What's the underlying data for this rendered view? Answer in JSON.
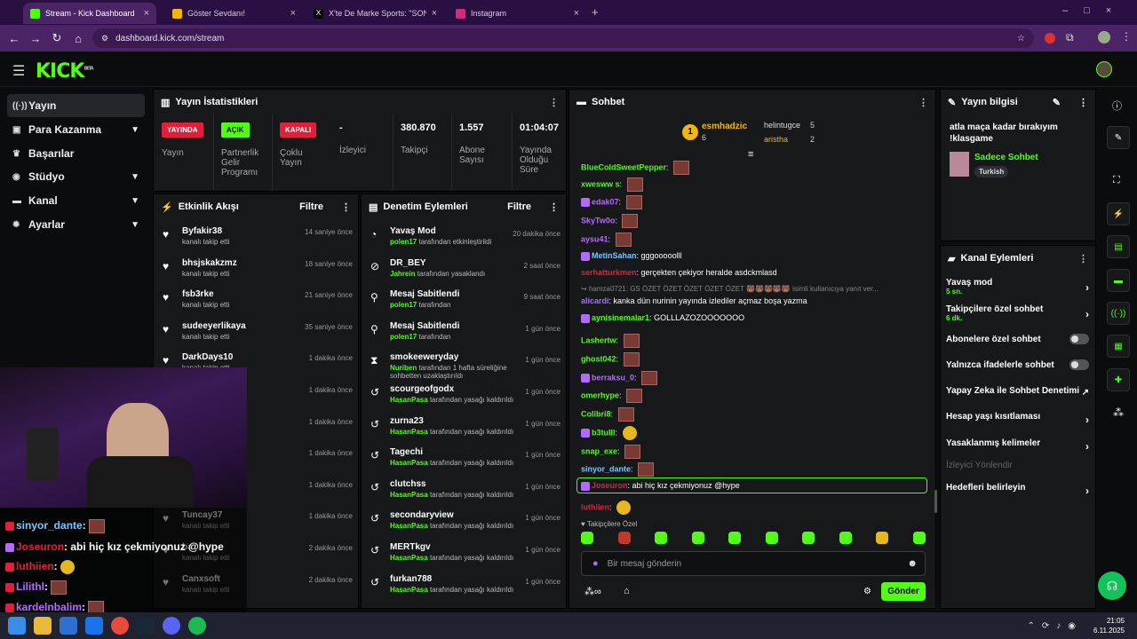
{
  "browser": {
    "tabs": [
      {
        "title": "Stream - Kick Dashboard",
        "active": true
      },
      {
        "title": "Göster Sevdanı!",
        "active": false
      },
      {
        "title": "X'te De Marke Sports: \"SON DA",
        "active": false
      },
      {
        "title": "Instagram",
        "active": false
      }
    ],
    "url": "dashboard.kick.com/stream"
  },
  "brand": {
    "logo": "KICK",
    "logo_sup": "BETA",
    "accent": "#53fc18"
  },
  "nav": [
    {
      "label": "Yayın",
      "icon": "stream-icon",
      "selected": true,
      "chevron": false
    },
    {
      "label": "Para Kazanma",
      "icon": "money-icon",
      "selected": false,
      "chevron": true
    },
    {
      "label": "Başarılar",
      "icon": "trophy-icon",
      "selected": false,
      "chevron": false
    },
    {
      "label": "Stüdyo",
      "icon": "studio-icon",
      "selected": false,
      "chevron": true
    },
    {
      "label": "Kanal",
      "icon": "channel-icon",
      "selected": false,
      "chevron": true
    },
    {
      "label": "Ayarlar",
      "icon": "gear-icon",
      "selected": false,
      "chevron": true
    }
  ],
  "stats": {
    "title": "Yayın İstatistikleri",
    "items": [
      {
        "badge": "YAYINDA",
        "badge_color": "#e0203a",
        "label": "Yayın"
      },
      {
        "badge": "AÇIK",
        "badge_color": "#53fc18",
        "label": "Partnerlik Gelir Programı"
      },
      {
        "badge": "KAPALI",
        "badge_color": "#e0203a",
        "label": "Çoklu Yayın"
      },
      {
        "value": "-",
        "label": "İzleyici"
      },
      {
        "value": "380.870",
        "label": "Takipçi"
      },
      {
        "value": "1.557",
        "label": "Abone Sayısı"
      },
      {
        "value": "01:04:07",
        "label": "Yayında Olduğu Süre"
      }
    ]
  },
  "activity": {
    "title": "Etkinlik Akışı",
    "filter": "Filtre",
    "rows": [
      {
        "name": "Byfakir38",
        "sub": "kanalı takip etti",
        "time": "14 saniye önce"
      },
      {
        "name": "bhsjskakzmz",
        "sub": "kanalı takip etti",
        "time": "18 saniye önce"
      },
      {
        "name": "fsb3rke",
        "sub": "kanalı takip etti",
        "time": "21 saniye önce"
      },
      {
        "name": "sudeeyerlikaya",
        "sub": "kanalı takip etti",
        "time": "35 saniye önce"
      },
      {
        "name": "DarkDays10",
        "sub": "kanalı takip etti",
        "time": "1 dakika önce"
      },
      {
        "name": "",
        "sub": "",
        "time": "1 dakika önce"
      },
      {
        "name": "",
        "sub": "",
        "time": "1 dakika önce"
      },
      {
        "name": "",
        "sub": "",
        "time": "1 dakika önce"
      },
      {
        "name": "",
        "sub": "",
        "time": "1 dakika önce"
      },
      {
        "name": "Tuncay37",
        "sub": "kanalı takip etti",
        "time": "1 dakika önce"
      },
      {
        "name": "ba",
        "sub": "kanalı takip etti",
        "time": "2 dakika önce"
      },
      {
        "name": "Canxsoft",
        "sub": "kanalı takip etti",
        "time": "2 dakika önce"
      }
    ]
  },
  "moderation": {
    "title": "Denetim Eylemleri",
    "filter": "Filtre",
    "rows": [
      {
        "icon": "slow-icon",
        "name": "Yavaş Mod",
        "actor": "polen17",
        "sub": "tarafından etkinleştirildi",
        "time": "20 dakika önce"
      },
      {
        "icon": "ban-icon",
        "name": "DR_BEY",
        "actor": "Jahrein",
        "sub": "tarafından yasaklandı",
        "time": "2 saat önce"
      },
      {
        "icon": "pin-icon",
        "name": "Mesaj Sabitlendi",
        "actor": "polen17",
        "sub": "tarafından",
        "time": "9 saat önce"
      },
      {
        "icon": "pin-icon",
        "name": "Mesaj Sabitlendi",
        "actor": "polen17",
        "sub": "tarafından",
        "time": "1 gün önce"
      },
      {
        "icon": "timeout-icon",
        "name": "smokeeweryday",
        "actor": "Nuriben",
        "sub": "tarafından 1 hafta süreliğine sohbetten uzaklaştırıldı",
        "time": "1 gün önce"
      },
      {
        "icon": "unban-icon",
        "name": "scourgeofgodx",
        "actor": "HasanPasa",
        "sub": "tarafından yasağı kaldırıldı",
        "time": "1 gün önce"
      },
      {
        "icon": "unban-icon",
        "name": "zurna23",
        "actor": "HasanPasa",
        "sub": "tarafından yasağı kaldırıldı",
        "time": "1 gün önce"
      },
      {
        "icon": "unban-icon",
        "name": "Tagechi",
        "actor": "HasanPasa",
        "sub": "tarafından yasağı kaldırıldı",
        "time": "1 gün önce"
      },
      {
        "icon": "unban-icon",
        "name": "clutchss",
        "actor": "HasanPasa",
        "sub": "tarafından yasağı kaldırıldı",
        "time": "1 gün önce"
      },
      {
        "icon": "unban-icon",
        "name": "secondaryview",
        "actor": "HasanPasa",
        "sub": "tarafından yasağı kaldırıldı",
        "time": "1 gün önce"
      },
      {
        "icon": "unban-icon",
        "name": "MERTkgv",
        "actor": "HasanPasa",
        "sub": "tarafından yasağı kaldırıldı",
        "time": "1 gün önce"
      },
      {
        "icon": "unban-icon",
        "name": "furkan788",
        "actor": "HasanPasa",
        "sub": "tarafından yasağı kaldırıldı",
        "time": "1 gün önce"
      }
    ]
  },
  "chat": {
    "title": "Sohbet",
    "leaders": [
      {
        "rank": "1",
        "name": "esmhadzic",
        "count": "6"
      },
      {
        "name": "helintugce",
        "count": "5"
      },
      {
        "name": "aristha",
        "count": "2"
      }
    ],
    "messages": [
      {
        "user": "BlueColdSweetPepper",
        "color": "#53fc18",
        "text": "",
        "emote": true
      },
      {
        "user": "xwesww s",
        "color": "#53fc18",
        "text": "",
        "emote": true
      },
      {
        "user": "edak07",
        "color": "#b36bff",
        "text": "",
        "emote": true
      },
      {
        "user": "SkyTw0o",
        "color": "#b36bff",
        "text": "",
        "emote": true
      },
      {
        "user": "aysu41",
        "color": "#b36bff",
        "text": "",
        "emote": true
      },
      {
        "user": "MetinSahan",
        "color": "#7cc4ff",
        "text": "gggooooolll",
        "emote": false
      },
      {
        "user": "serhatturkmen",
        "color": "#e0203a",
        "text": "gerçekten çekiyor heralde asdckmlasd",
        "emote": false
      },
      {
        "user": "alicardi",
        "color": "#b36bff",
        "text": "kanka dün nurinin yayında izlediler açmaz boşa yazma",
        "emote": false
      },
      {
        "user": "aynisinemalar1",
        "color": "#53fc18",
        "text": "GOLLLAZOZOOOOOOO",
        "emote": false
      },
      {
        "user": "Lashertw",
        "color": "#53fc18",
        "text": "",
        "emote": true
      },
      {
        "user": "ghost042",
        "color": "#53fc18",
        "text": "",
        "emote": true
      },
      {
        "user": "berraksu_0",
        "color": "#b36bff",
        "text": "",
        "emote": true
      },
      {
        "user": "omerhype",
        "color": "#53fc18",
        "text": "",
        "emote": true
      },
      {
        "user": "Colibri8",
        "color": "#53fc18",
        "text": "",
        "emote": true
      },
      {
        "user": "b3tulll",
        "color": "#53fc18",
        "text": "",
        "emote": false,
        "smile": true
      },
      {
        "user": "snap_exe",
        "color": "#53fc18",
        "text": "",
        "emote": true
      },
      {
        "user": "sinyor_dante",
        "color": "#7cc4ff",
        "text": "",
        "emote": true
      },
      {
        "user": "Joseuron",
        "color": "#e0203a",
        "text": "abi hiç kız çekmiyonuz @hype",
        "emote": false,
        "highlight": true
      },
      {
        "user": "luthiien",
        "color": "#e0203a",
        "text": "",
        "emote": false,
        "smile": true
      }
    ],
    "reply_hint": "hamza0721: GS ÖZET ÖZET ÖZET ÖZET ÖZET",
    "reply_hint2": "isimli kullanıcıya yanıt ver...",
    "followers_only": "Takipçilere Özel",
    "placeholder": "Bir mesaj gönderin",
    "send": "Gönder"
  },
  "stream_info": {
    "title": "Yayın bilgisi",
    "stream_title": "atla maça kadar bırakıyım !klasgame",
    "category": "Sadece Sohbet",
    "tag": "Turkish"
  },
  "channel_actions": {
    "title": "Kanal Eylemleri",
    "items": [
      {
        "label": "Yavaş mod",
        "sub": "5 sn.",
        "type": "arrow"
      },
      {
        "label": "Takipçilere özel sohbet",
        "sub": "6 dk.",
        "type": "arrow"
      },
      {
        "label": "Abonelere özel sohbet",
        "sub": "",
        "type": "toggle"
      },
      {
        "label": "Yalnızca ifadelerle sohbet",
        "sub": "",
        "type": "toggle"
      },
      {
        "label": "Yapay Zeka ile Sohbet Denetimi",
        "sub": "",
        "type": "external"
      },
      {
        "label": "Hesap yaşı kısıtlaması",
        "sub": "",
        "type": "arrow"
      },
      {
        "label": "Yasaklanmış kelimeler",
        "sub": "",
        "type": "arrow"
      },
      {
        "label": "İzleyici Yönlendir",
        "sub": "",
        "type": "disabled"
      },
      {
        "label": "Hedefleri belirleyin",
        "sub": "",
        "type": "arrow"
      }
    ]
  },
  "overlay": {
    "lines": [
      {
        "user": "sinyor_dante",
        "color": "#7cc4ff",
        "text": ":"
      },
      {
        "user": "Joseuron",
        "color": "#e0203a",
        "text": ": abi hiç kız çekmiyonuz @hype"
      },
      {
        "user": "luthiien",
        "color": "#e0203a",
        "text": ":"
      },
      {
        "user": "Lilithl",
        "color": "#b36bff",
        "text": ":"
      },
      {
        "user": "kardelnbalim",
        "color": "#b36bff",
        "text": ":"
      }
    ]
  },
  "taskbar": {
    "time": "21:05",
    "date": "6.11.2025"
  }
}
